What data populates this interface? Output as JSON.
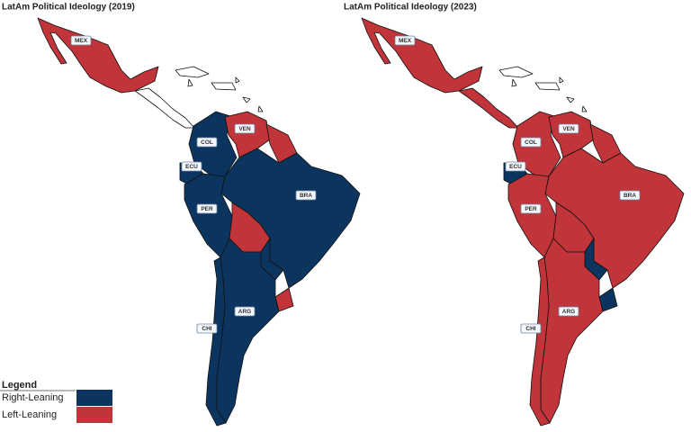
{
  "maps": [
    {
      "title": "LatAm Political Ideology (2019)",
      "labels": [
        "MEX",
        "VEN",
        "COL",
        "ECU",
        "PER",
        "BRA",
        "ARG",
        "CHI"
      ]
    },
    {
      "title": "LatAm Political Ideology (2023)",
      "labels": [
        "MEX",
        "VEN",
        "COL",
        "ECU",
        "PER",
        "BRA",
        "ARG",
        "CHI"
      ]
    }
  ],
  "legend": {
    "title": "Legend",
    "items": [
      {
        "label": "Right-Leaning",
        "color": "#0b355f"
      },
      {
        "label": "Left-Leaning",
        "color": "#c0343a"
      }
    ]
  }
}
